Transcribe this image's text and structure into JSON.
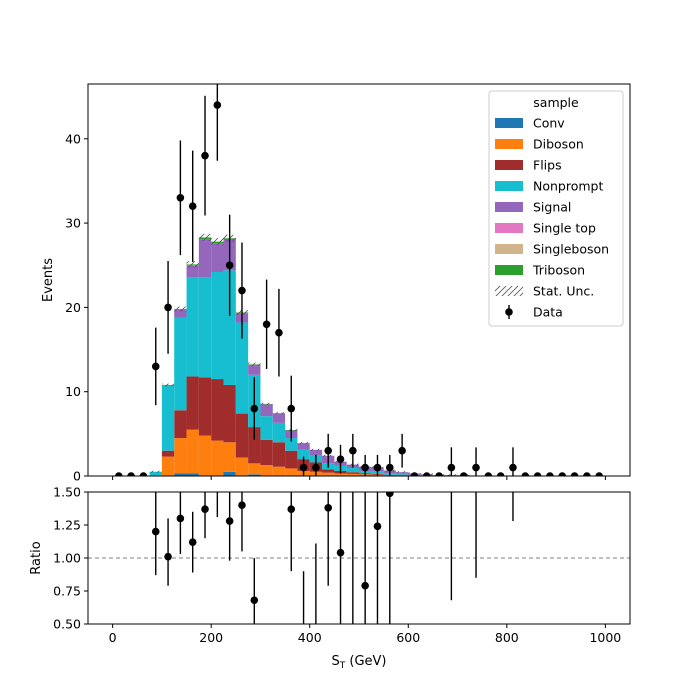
{
  "chart_data": {
    "type": "bar",
    "subtype": "stacked-histogram-with-data-and-ratio",
    "xlabel": "S",
    "xlabel_sub": "T",
    "xlabel_unit": " (GeV)",
    "top_ylabel": "Events",
    "bottom_ylabel": "Ratio",
    "xlim": [
      -50,
      1050
    ],
    "top_ylim": [
      0,
      46.5
    ],
    "bottom_ylim": [
      0.5,
      1.5
    ],
    "x_ticks": [
      0,
      200,
      400,
      600,
      800,
      1000
    ],
    "top_y_ticks": [
      0,
      10,
      20,
      30,
      40
    ],
    "bottom_y_ticks": [
      "0.50",
      "0.75",
      "1.00",
      "1.25",
      "1.50"
    ],
    "ratio_reference": 1.0,
    "legend_title": "sample",
    "legend_position": "upper right",
    "bin_edges": [
      0,
      25,
      50,
      75,
      100,
      125,
      150,
      175,
      200,
      225,
      250,
      275,
      300,
      325,
      350,
      375,
      400,
      425,
      450,
      475,
      500,
      525,
      550,
      575,
      600,
      625,
      650,
      675,
      700,
      725,
      750,
      775,
      800,
      825,
      850,
      875,
      900,
      925,
      950,
      975,
      1000
    ],
    "series": [
      {
        "name": "Conv",
        "color": "#1f77b4",
        "values": [
          0,
          0,
          0,
          0,
          0,
          0.3,
          0.3,
          0,
          0,
          0.5,
          0,
          0.2,
          0,
          0,
          0,
          0,
          0,
          0,
          0,
          0,
          0,
          0,
          0,
          0,
          0,
          0,
          0,
          0,
          0,
          0,
          0,
          0,
          0,
          0,
          0,
          0,
          0,
          0,
          0,
          0
        ]
      },
      {
        "name": "Diboson",
        "color": "#ff7f0e",
        "values": [
          0,
          0,
          0,
          0.1,
          2.3,
          4.2,
          5.2,
          4.8,
          4.2,
          3.5,
          2.2,
          1.3,
          1.3,
          1.1,
          0.9,
          0.6,
          0.5,
          0.4,
          0.3,
          0.25,
          0.2,
          0.15,
          0.1,
          0.1,
          0.05,
          0.05,
          0,
          0,
          0,
          0,
          0,
          0,
          0,
          0,
          0,
          0,
          0,
          0,
          0,
          0
        ]
      },
      {
        "name": "Flips",
        "color": "#a02c2c",
        "values": [
          0,
          0,
          0,
          0,
          0.7,
          3.3,
          6.3,
          6.9,
          7.3,
          6.8,
          5.2,
          4.3,
          3.0,
          2.9,
          2.1,
          1.4,
          1.1,
          0.4,
          0.3,
          0.2,
          0.1,
          0.1,
          0.05,
          0.05,
          0,
          0,
          0,
          0,
          0,
          0,
          0,
          0,
          0,
          0,
          0,
          0,
          0,
          0,
          0,
          0
        ]
      },
      {
        "name": "Nonprompt",
        "color": "#17becf",
        "values": [
          0,
          0,
          0,
          0.4,
          7.7,
          11.0,
          11.8,
          11.9,
          12.7,
          13.6,
          10.8,
          6.2,
          2.8,
          2.3,
          1.5,
          1.1,
          0.8,
          0.7,
          0.6,
          0.5,
          0.3,
          0.3,
          0.2,
          0.1,
          0.05,
          0.05,
          0,
          0,
          0,
          0,
          0,
          0,
          0,
          0,
          0,
          0,
          0,
          0,
          0,
          0
        ]
      },
      {
        "name": "Signal",
        "color": "#9467bd",
        "values": [
          0,
          0,
          0,
          0,
          0,
          0.9,
          1.4,
          4.5,
          3.4,
          3.6,
          1.1,
          1.2,
          1.4,
          1.1,
          0.9,
          0.8,
          0.7,
          0.9,
          0.5,
          0.4,
          0.5,
          0.5,
          0.3,
          0.2,
          0.2,
          0.1,
          0.1,
          0.1,
          0.1,
          0,
          0,
          0,
          0,
          0,
          0,
          0,
          0,
          0,
          0,
          0
        ]
      },
      {
        "name": "Single top",
        "color": "#e377c2",
        "values": [
          0,
          0,
          0,
          0,
          0,
          0,
          0,
          0,
          0,
          0,
          0,
          0,
          0,
          0,
          0,
          0,
          0,
          0,
          0,
          0,
          0,
          0,
          0,
          0,
          0,
          0,
          0,
          0,
          0,
          0,
          0,
          0,
          0,
          0,
          0,
          0,
          0,
          0,
          0,
          0
        ]
      },
      {
        "name": "Singleboson",
        "color": "#d2b48c",
        "values": [
          0,
          0,
          0,
          0,
          0,
          0,
          0,
          0,
          0,
          0,
          0,
          0,
          0,
          0,
          0,
          0,
          0,
          0,
          0,
          0,
          0,
          0,
          0,
          0,
          0,
          0,
          0,
          0,
          0,
          0,
          0,
          0,
          0,
          0,
          0,
          0,
          0,
          0,
          0,
          0
        ]
      },
      {
        "name": "Triboson",
        "color": "#2ca02c",
        "values": [
          0,
          0,
          0,
          0,
          0.1,
          0.1,
          0.1,
          0.2,
          0.2,
          0.2,
          0.1,
          0.05,
          0.05,
          0.05,
          0.05,
          0,
          0,
          0,
          0,
          0,
          0,
          0,
          0,
          0,
          0,
          0,
          0,
          0,
          0,
          0,
          0,
          0,
          0,
          0,
          0,
          0,
          0,
          0,
          0,
          0
        ]
      }
    ],
    "uncertainty_label": "Stat. Unc.",
    "data": {
      "name": "Data",
      "x": [
        12.5,
        37.5,
        62.5,
        87.5,
        112.5,
        137.5,
        162.5,
        187.5,
        212.5,
        237.5,
        262.5,
        287.5,
        312.5,
        337.5,
        362.5,
        387.5,
        412.5,
        437.5,
        462.5,
        487.5,
        512.5,
        537.5,
        562.5,
        587.5,
        612.5,
        637.5,
        662.5,
        687.5,
        712.5,
        737.5,
        762.5,
        787.5,
        812.5,
        837.5,
        862.5,
        887.5,
        912.5,
        937.5,
        962.5,
        987.5
      ],
      "y": [
        0,
        0,
        0,
        13,
        20,
        33,
        32,
        38,
        44,
        25,
        22,
        8,
        18,
        17,
        8,
        1,
        1,
        3,
        2,
        3,
        1,
        1,
        1,
        3,
        0,
        0,
        0,
        1,
        0,
        1,
        0,
        0,
        1,
        0,
        0,
        0,
        0,
        0,
        0,
        0
      ],
      "err": [
        0,
        0,
        0,
        4.6,
        5.5,
        6.8,
        6.6,
        7.1,
        6.6,
        6.0,
        5.7,
        3.7,
        5.3,
        5.2,
        3.9,
        1.3,
        1.5,
        2.0,
        1.7,
        2.0,
        1.5,
        1.5,
        1.5,
        2.0,
        0,
        0,
        0,
        2.4,
        0,
        2.4,
        0,
        0,
        2.4,
        0,
        0,
        0,
        0,
        0,
        0,
        0
      ]
    },
    "ratio": {
      "x": [
        87.5,
        112.5,
        137.5,
        162.5,
        187.5,
        212.5,
        237.5,
        262.5,
        287.5,
        362.5,
        437.5,
        462.5,
        512.5,
        537.5,
        562.5
      ],
      "y": [
        1.2,
        1.01,
        1.3,
        1.12,
        1.37,
        1.55,
        1.28,
        1.4,
        0.68,
        1.37,
        1.38,
        1.04,
        0.79,
        1.24,
        1.49
      ],
      "lo": [
        0.87,
        0.79,
        1.03,
        0.89,
        1.15,
        1.31,
        0.98,
        1.05,
        0.37,
        0.9,
        0.79,
        0.17,
        0.15,
        0.2,
        0.35
      ],
      "hi": [
        1.5,
        1.3,
        1.55,
        1.35,
        1.65,
        1.8,
        1.55,
        1.7,
        1.0,
        1.7,
        2.0,
        2.0,
        1.5,
        2.2,
        2.4
      ],
      "bars_only": [
        {
          "x": 387.5,
          "lo": 0.5,
          "hi": 0.9
        },
        {
          "x": 412.5,
          "lo": 0.5,
          "hi": 1.11
        },
        {
          "x": 487.5,
          "lo": 0.5,
          "hi": 1.5
        },
        {
          "x": 687.5,
          "lo": 0.68,
          "hi": 1.5
        },
        {
          "x": 737.5,
          "lo": 0.85,
          "hi": 1.5
        },
        {
          "x": 812.5,
          "lo": 1.28,
          "hi": 1.5
        }
      ]
    }
  }
}
